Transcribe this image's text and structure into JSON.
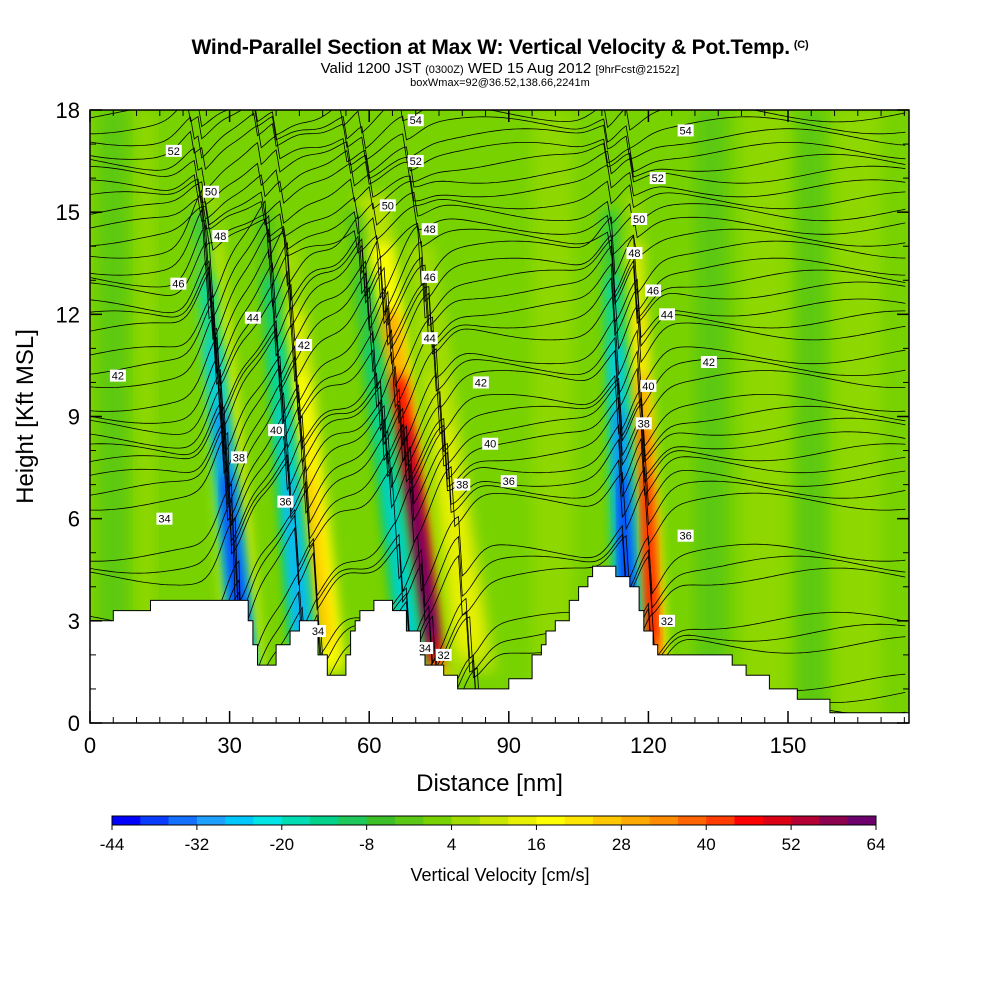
{
  "header": {
    "title": "Wind-Parallel Section at Max W: Vertical Velocity & Pot.Temp.",
    "title_mark": "(C)",
    "valid_prefix": "Valid 1200 JST",
    "valid_z": "(0300Z)",
    "valid_date": "WED 15 Aug 2012",
    "forecast": "[9hrFcst@2152z]",
    "boxwmax": "boxWmax=92@36.52,138.66,2241m"
  },
  "chart_data": {
    "type": "heatmap",
    "xlabel": "Distance [nm]",
    "ylabel": "Height [Kft MSL]",
    "xlim": [
      0,
      176
    ],
    "ylim": [
      0,
      18
    ],
    "x_ticks": [
      0,
      30,
      60,
      90,
      120,
      150
    ],
    "y_ticks": [
      0,
      3,
      6,
      9,
      12,
      15,
      18
    ],
    "colorbar": {
      "title": "Vertical Velocity [cm/s]",
      "tick_labels": [
        -44,
        -32,
        -20,
        -8,
        4,
        16,
        28,
        40,
        52,
        64
      ],
      "levels": [
        -44,
        -40,
        -36,
        -32,
        -28,
        -24,
        -20,
        -16,
        -12,
        -8,
        -4,
        0,
        4,
        8,
        12,
        16,
        20,
        24,
        28,
        32,
        36,
        40,
        44,
        48,
        52,
        56,
        60,
        64
      ],
      "colors": [
        "#0000ff",
        "#0a3cff",
        "#1470ff",
        "#1ea0ff",
        "#00c8ff",
        "#00e6e6",
        "#00dcb4",
        "#00d28c",
        "#1ec85a",
        "#3cbe28",
        "#5ac814",
        "#78d200",
        "#a0dc00",
        "#c8e600",
        "#e6f000",
        "#ffff00",
        "#ffe600",
        "#ffc800",
        "#ffaa00",
        "#ff8c00",
        "#ff6400",
        "#ff3c00",
        "#ff0000",
        "#dc0014",
        "#b40032",
        "#8c0050",
        "#6e006e"
      ]
    },
    "terrain_kft": [
      [
        0,
        3
      ],
      [
        5,
        3
      ],
      [
        5,
        3.3
      ],
      [
        13,
        3.3
      ],
      [
        13,
        3.6
      ],
      [
        34,
        3.6
      ],
      [
        34,
        3.0
      ],
      [
        35,
        3.0
      ],
      [
        35,
        2.3
      ],
      [
        36,
        2.3
      ],
      [
        36,
        1.7
      ],
      [
        40,
        1.7
      ],
      [
        40,
        2.3
      ],
      [
        43,
        2.3
      ],
      [
        43,
        2.7
      ],
      [
        45,
        2.7
      ],
      [
        45,
        3.0
      ],
      [
        49,
        3.0
      ],
      [
        49,
        2.0
      ],
      [
        51,
        2.0
      ],
      [
        51,
        1.4
      ],
      [
        55,
        1.4
      ],
      [
        55,
        2.0
      ],
      [
        56,
        2.0
      ],
      [
        56,
        2.7
      ],
      [
        57,
        2.7
      ],
      [
        57,
        3.0
      ],
      [
        58,
        3.0
      ],
      [
        58,
        3.3
      ],
      [
        61,
        3.3
      ],
      [
        61,
        3.6
      ],
      [
        65,
        3.6
      ],
      [
        65,
        3.3
      ],
      [
        68,
        3.3
      ],
      [
        68,
        2.7
      ],
      [
        69,
        2.7
      ],
      [
        69,
        2.7
      ],
      [
        71,
        2.7
      ],
      [
        71,
        2.0
      ],
      [
        72,
        2.0
      ],
      [
        72,
        1.7
      ],
      [
        76,
        1.7
      ],
      [
        76,
        1.4
      ],
      [
        79,
        1.4
      ],
      [
        79,
        1.0
      ],
      [
        90,
        1.0
      ],
      [
        90,
        1.3
      ],
      [
        95,
        1.3
      ],
      [
        95,
        2.0
      ],
      [
        97,
        2.0
      ],
      [
        97,
        2.3
      ],
      [
        98,
        2.3
      ],
      [
        98,
        2.7
      ],
      [
        100,
        2.7
      ],
      [
        100,
        3.0
      ],
      [
        103,
        3.0
      ],
      [
        103,
        3.6
      ],
      [
        105,
        3.6
      ],
      [
        105,
        4.0
      ],
      [
        107,
        4.0
      ],
      [
        107,
        4.3
      ],
      [
        108,
        4.3
      ],
      [
        108,
        4.6
      ],
      [
        113,
        4.6
      ],
      [
        113,
        4.3
      ],
      [
        116,
        4.3
      ],
      [
        116,
        4.0
      ],
      [
        118,
        4.0
      ],
      [
        118,
        3.3
      ],
      [
        119,
        3.3
      ],
      [
        119,
        2.7
      ],
      [
        121,
        2.7
      ],
      [
        121,
        2.3
      ],
      [
        122,
        2.3
      ],
      [
        122,
        2.0
      ],
      [
        138,
        2.0
      ],
      [
        138,
        1.7
      ],
      [
        141,
        1.7
      ],
      [
        141,
        1.4
      ],
      [
        146,
        1.4
      ],
      [
        146,
        1.0
      ],
      [
        152,
        1.0
      ],
      [
        152,
        0.7
      ],
      [
        158,
        0.7
      ],
      [
        158,
        0.7
      ],
      [
        159,
        0.7
      ],
      [
        159,
        0.3
      ],
      [
        176,
        0.3
      ]
    ],
    "updrafts": [
      {
        "x_bottom": 33,
        "x_top": 24,
        "width": 3,
        "peak": 30
      },
      {
        "x_bottom": 50,
        "x_top": 40,
        "width": 4,
        "peak": 26
      },
      {
        "x_bottom": 74,
        "x_top": 59,
        "width": 4,
        "peak": 64
      },
      {
        "x_bottom": 82,
        "x_top": 68,
        "width": 4,
        "peak": 16
      },
      {
        "x_bottom": 121,
        "x_top": 116,
        "width": 2,
        "peak": 48
      }
    ],
    "downdrafts": [
      {
        "x_bottom": 33,
        "x_top": 22,
        "width": 2,
        "peak": -40
      },
      {
        "x_bottom": 46,
        "x_top": 36,
        "width": 2,
        "peak": -30
      },
      {
        "x_bottom": 69,
        "x_top": 55,
        "width": 2,
        "peak": -24
      },
      {
        "x_bottom": 116,
        "x_top": 111,
        "width": 2,
        "peak": -44
      }
    ],
    "theta_contours": [
      30,
      32,
      34,
      36,
      38,
      40,
      42,
      44,
      46,
      48,
      50,
      52,
      54
    ],
    "contour_labels": [
      {
        "v": "54",
        "x": 70,
        "y": 17.7
      },
      {
        "v": "54",
        "x": 128,
        "y": 17.4
      },
      {
        "v": "52",
        "x": 18,
        "y": 16.8
      },
      {
        "v": "52",
        "x": 70,
        "y": 16.5
      },
      {
        "v": "52",
        "x": 122,
        "y": 16.0
      },
      {
        "v": "50",
        "x": 26,
        "y": 15.6
      },
      {
        "v": "50",
        "x": 64,
        "y": 15.2
      },
      {
        "v": "50",
        "x": 118,
        "y": 14.8
      },
      {
        "v": "48",
        "x": 28,
        "y": 14.3
      },
      {
        "v": "48",
        "x": 73,
        "y": 14.5
      },
      {
        "v": "48",
        "x": 117,
        "y": 13.8
      },
      {
        "v": "46",
        "x": 19,
        "y": 12.9
      },
      {
        "v": "46",
        "x": 73,
        "y": 13.1
      },
      {
        "v": "46",
        "x": 121,
        "y": 12.7
      },
      {
        "v": "44",
        "x": 35,
        "y": 11.9
      },
      {
        "v": "44",
        "x": 73,
        "y": 11.3
      },
      {
        "v": "44",
        "x": 124,
        "y": 12.0
      },
      {
        "v": "42",
        "x": 6,
        "y": 10.2
      },
      {
        "v": "42",
        "x": 46,
        "y": 11.1
      },
      {
        "v": "42",
        "x": 84,
        "y": 10.0
      },
      {
        "v": "42",
        "x": 133,
        "y": 10.6
      },
      {
        "v": "40",
        "x": 40,
        "y": 8.6
      },
      {
        "v": "40",
        "x": 86,
        "y": 8.2
      },
      {
        "v": "40",
        "x": 120,
        "y": 9.9
      },
      {
        "v": "38",
        "x": 32,
        "y": 7.8
      },
      {
        "v": "38",
        "x": 80,
        "y": 7.0
      },
      {
        "v": "38",
        "x": 119,
        "y": 8.8
      },
      {
        "v": "36",
        "x": 42,
        "y": 6.5
      },
      {
        "v": "36",
        "x": 90,
        "y": 7.1
      },
      {
        "v": "36",
        "x": 128,
        "y": 5.5
      },
      {
        "v": "34",
        "x": 16,
        "y": 6.0
      },
      {
        "v": "34",
        "x": 49,
        "y": 2.7
      },
      {
        "v": "34",
        "x": 72,
        "y": 2.2
      },
      {
        "v": "32",
        "x": 76,
        "y": 2.0
      },
      {
        "v": "32",
        "x": 124,
        "y": 3.0
      }
    ]
  }
}
